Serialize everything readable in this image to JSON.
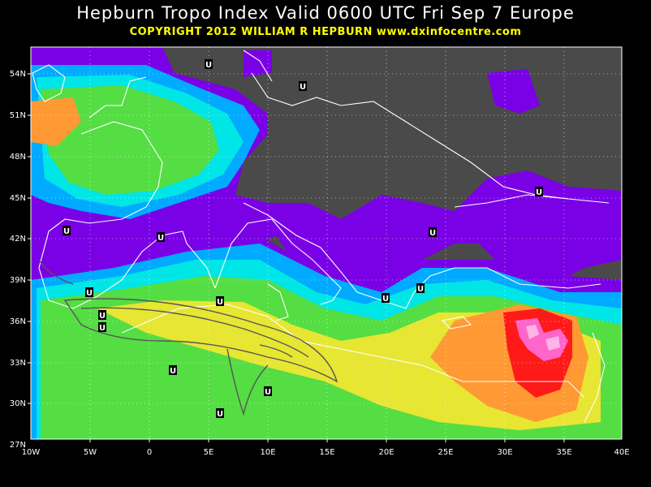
{
  "header": {
    "title": "Hepburn Tropo Index Valid 0600 UTC Fri Sep 7 Europe",
    "copyright": "COPYRIGHT 2012   WILLIAM R HEPBURN   www.dxinfocentre.com"
  },
  "map": {
    "lat_labels": [
      "54N",
      "51N",
      "48N",
      "45N",
      "42N",
      "39N",
      "36N",
      "33N",
      "30N",
      "27N"
    ],
    "lon_labels": [
      "10W",
      "5W",
      "0",
      "5E",
      "10E",
      "15E",
      "20E",
      "25E",
      "30E",
      "35E",
      "40E"
    ],
    "marker_letter": "U",
    "colors": {
      "background": "#000000",
      "land_dark": "#4a4a4a",
      "purple": "#7a00e6",
      "blue": "#00aaff",
      "cyan": "#00e5e5",
      "green": "#55dd44",
      "yellow": "#e6e633",
      "orange": "#ff9933",
      "red": "#ff1a1a",
      "pink": "#ff66cc",
      "light_pink": "#ffb3e6",
      "coastline": "#ffffff",
      "grid": "#ffffff"
    }
  }
}
